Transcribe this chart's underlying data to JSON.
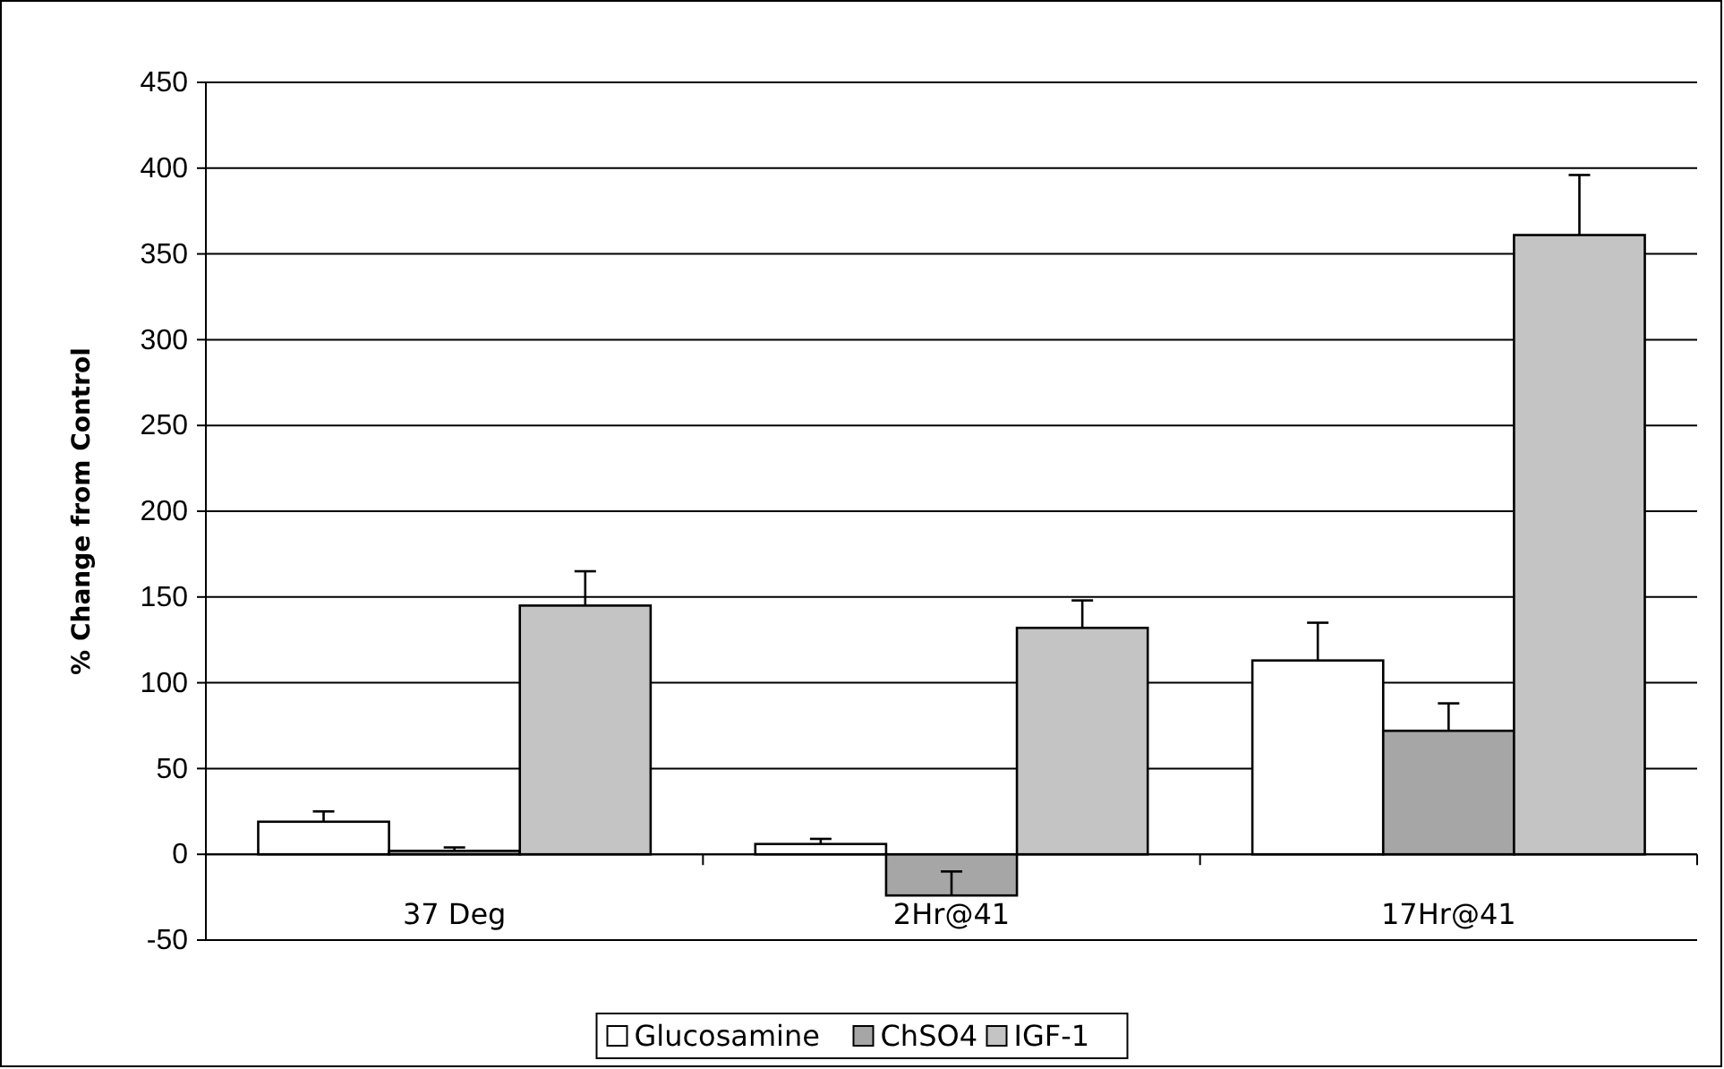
{
  "chart_data": {
    "type": "bar",
    "ylabel": "% Change from Control",
    "categories": [
      "37 Deg",
      "2Hr@41",
      "17Hr@41"
    ],
    "series": [
      {
        "name": "Glucosamine",
        "color": "#ffffff",
        "values": [
          19,
          6,
          113
        ],
        "errors": [
          [
            19,
            25
          ],
          [
            6,
            9
          ],
          [
            113,
            135
          ]
        ]
      },
      {
        "name": "ChSO4",
        "color": "#a6a6a6",
        "values": [
          2,
          -24,
          72
        ],
        "errors": [
          [
            2,
            4
          ],
          [
            -24,
            -10
          ],
          [
            72,
            88
          ]
        ]
      },
      {
        "name": "IGF-1",
        "color": "#c4c4c4",
        "values": [
          145,
          132,
          361
        ],
        "errors": [
          [
            145,
            165
          ],
          [
            132,
            148
          ],
          [
            361,
            396
          ]
        ]
      }
    ],
    "ylim": [
      -50,
      450
    ],
    "yticks": [
      -50,
      0,
      50,
      100,
      150,
      200,
      250,
      300,
      350,
      400,
      450
    ],
    "grid": "y",
    "legend": "bottom"
  }
}
